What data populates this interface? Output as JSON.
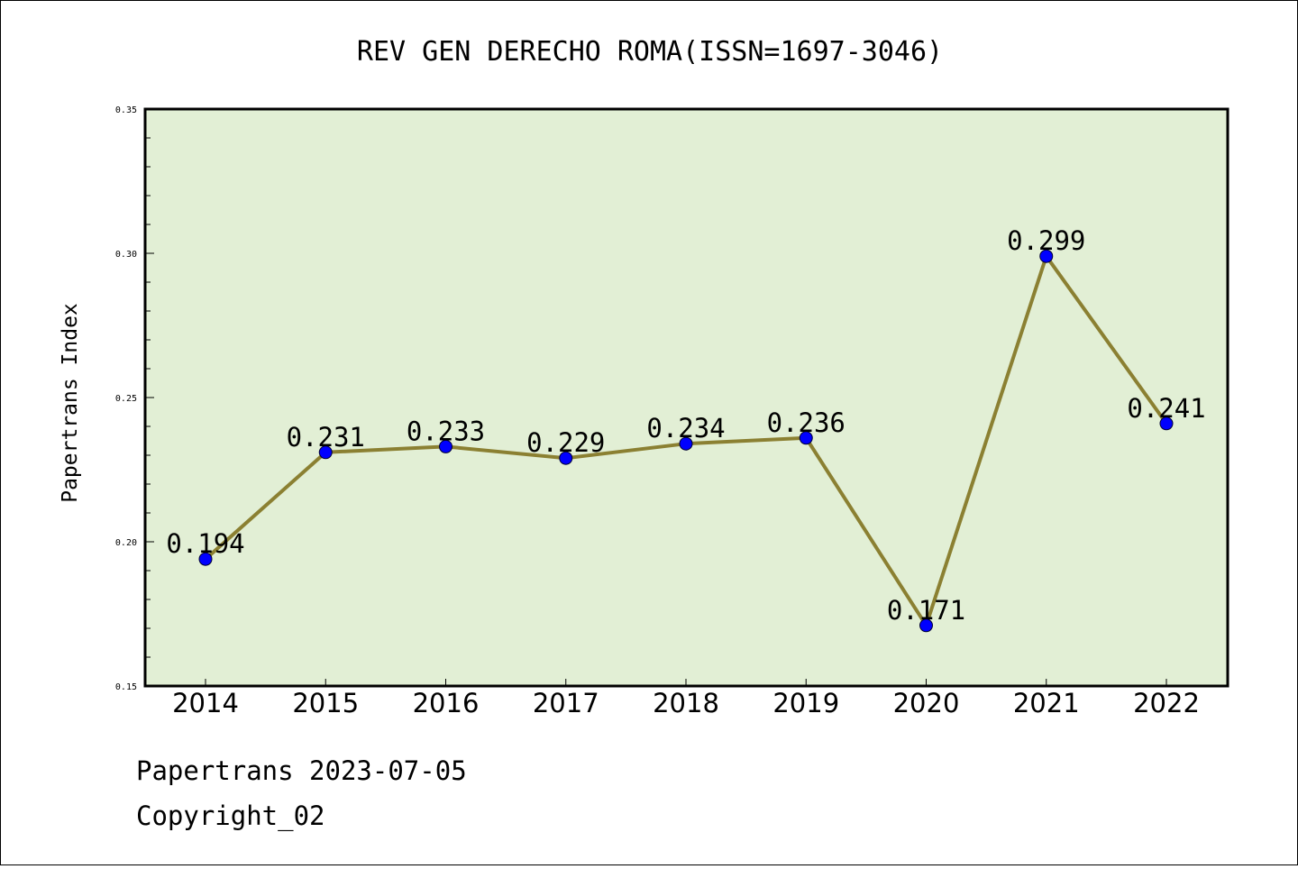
{
  "chart_data": {
    "type": "line",
    "title": "REV GEN DERECHO ROMA(ISSN=1697-3046)",
    "xlabel": "",
    "ylabel": "Papertrans Index",
    "categories": [
      "2014",
      "2015",
      "2016",
      "2017",
      "2018",
      "2019",
      "2020",
      "2021",
      "2022"
    ],
    "values": [
      0.194,
      0.231,
      0.233,
      0.229,
      0.234,
      0.236,
      0.171,
      0.299,
      0.241
    ],
    "data_labels": [
      "0.194",
      "0.231",
      "0.233",
      "0.229",
      "0.234",
      "0.236",
      "0.171",
      "0.299",
      "0.241"
    ],
    "ylim": [
      0.15,
      0.35
    ],
    "yticks": [
      "0.15",
      "0.20",
      "0.25",
      "0.30",
      "0.35"
    ],
    "grid": false,
    "colors": {
      "plot_background": "#e2efd5",
      "line": "#8b8032",
      "marker": "#0000ff"
    }
  },
  "footer": {
    "line1": "Papertrans 2023-07-05",
    "line2": "Copyright_02"
  }
}
